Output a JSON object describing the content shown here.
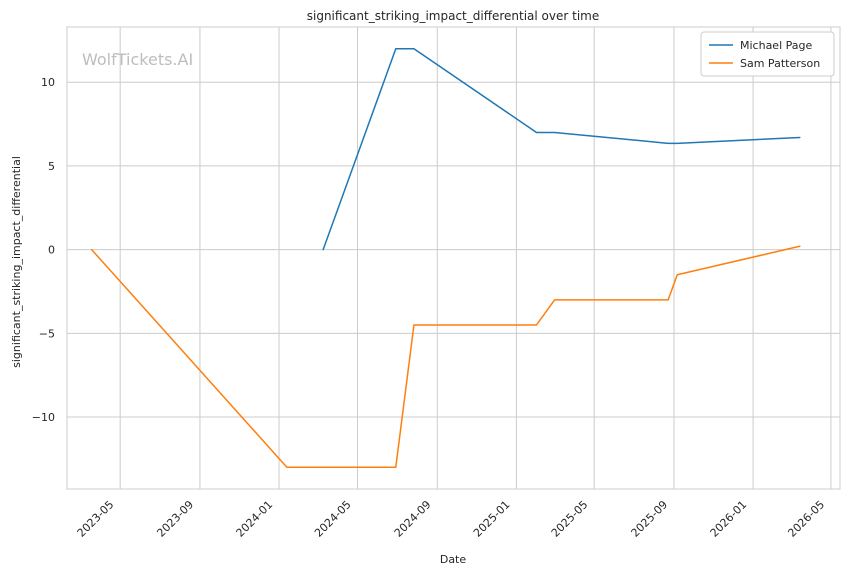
{
  "watermark": "WolfTickets.AI",
  "chart_data": {
    "type": "line",
    "title": "significant_striking_impact_differential over time",
    "xlabel": "Date",
    "ylabel": "significant_striking_impact_differential",
    "x_ticks": [
      "2023-05",
      "2023-09",
      "2024-01",
      "2024-05",
      "2024-09",
      "2025-01",
      "2025-05",
      "2025-09",
      "2026-01",
      "2026-05"
    ],
    "y_ticks": [
      "−10",
      "−5",
      "0",
      "5",
      "10"
    ],
    "y_tick_values": [
      -10,
      -5,
      0,
      5,
      10
    ],
    "xlim": [
      "2023-02-08",
      "2026-05-15"
    ],
    "ylim": [
      -14.3,
      13.3
    ],
    "grid": true,
    "legend_position": "top-right",
    "series": [
      {
        "name": "Michael Page",
        "color": "#1f77b4",
        "points": [
          [
            "2024-03-09",
            0
          ],
          [
            "2024-06-29",
            12
          ],
          [
            "2024-07-27",
            12
          ],
          [
            "2025-02-01",
            7
          ],
          [
            "2025-03-01",
            7
          ],
          [
            "2025-08-23",
            6.35
          ],
          [
            "2025-09-06",
            6.35
          ],
          [
            "2026-03-14",
            6.7
          ]
        ]
      },
      {
        "name": "Sam Patterson",
        "color": "#ff7f0e",
        "points": [
          [
            "2023-03-18",
            0
          ],
          [
            "2024-01-13",
            -13
          ],
          [
            "2024-06-29",
            -13
          ],
          [
            "2024-07-27",
            -4.5
          ],
          [
            "2025-02-01",
            -4.5
          ],
          [
            "2025-03-01",
            -3
          ],
          [
            "2025-08-23",
            -3
          ],
          [
            "2025-09-06",
            -1.5
          ],
          [
            "2026-03-14",
            0.2
          ]
        ]
      }
    ]
  }
}
